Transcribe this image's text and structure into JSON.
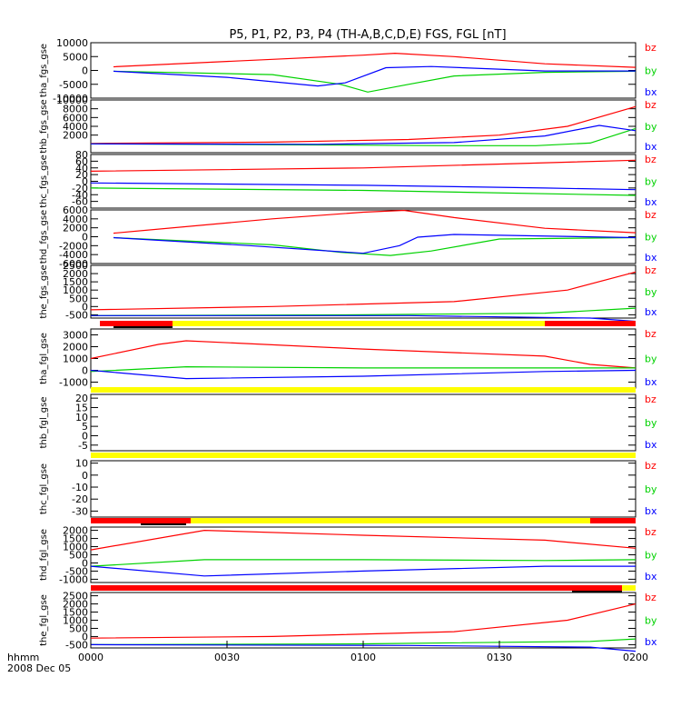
{
  "title": "P5, P1, P2, P3, P4 (TH-A,B,C,D,E) FGS, FGL [nT]",
  "footer": {
    "line1": "hhmm",
    "line2": "2008 Dec 05"
  },
  "colors": {
    "bx": "#0000ff",
    "by": "#00d200",
    "bz": "#ff0000",
    "bar_red": "#ff0000",
    "bar_yellow": "#ffff00",
    "bar_black": "#000000"
  },
  "chart_data": {
    "type": "line",
    "x_axis": {
      "ticks": [
        "0000",
        "0030",
        "0100",
        "0130",
        "0200"
      ],
      "range_minutes": [
        0,
        120
      ]
    },
    "legend": [
      "bz",
      "by",
      "bx"
    ],
    "panels": [
      {
        "ylabel": "tha_fgs_gse",
        "ylim": [
          -10000,
          10000
        ],
        "ticks": [
          -10000,
          -5000,
          0,
          5000,
          10000
        ],
        "series": {
          "bz": [
            [
              5,
              1300
            ],
            [
              40,
              4000
            ],
            [
              60,
              5500
            ],
            [
              67,
              6200
            ],
            [
              80,
              5000
            ],
            [
              100,
              2400
            ],
            [
              120,
              1100
            ]
          ],
          "by": [
            [
              5,
              -300
            ],
            [
              40,
              -1500
            ],
            [
              55,
              -5000
            ],
            [
              61,
              -7800
            ],
            [
              70,
              -5000
            ],
            [
              80,
              -2000
            ],
            [
              100,
              -700
            ],
            [
              120,
              -300
            ]
          ],
          "bx": [
            [
              5,
              -300
            ],
            [
              30,
              -2500
            ],
            [
              50,
              -5600
            ],
            [
              56,
              -4500
            ],
            [
              65,
              1000
            ],
            [
              75,
              1400
            ],
            [
              100,
              -200
            ],
            [
              120,
              -200
            ]
          ]
        }
      },
      {
        "ylabel": "thb_fgs_gse",
        "ylim": [
          -2000,
          10000
        ],
        "ticks": [
          2000,
          4000,
          6000,
          8000,
          10000
        ],
        "series": {
          "bz": [
            [
              0,
              100
            ],
            [
              40,
              400
            ],
            [
              70,
              1000
            ],
            [
              90,
              2000
            ],
            [
              105,
              4000
            ],
            [
              120,
              8500
            ]
          ],
          "by": [
            [
              0,
              0
            ],
            [
              40,
              -200
            ],
            [
              80,
              -400
            ],
            [
              98,
              -400
            ],
            [
              110,
              200
            ],
            [
              120,
              3500
            ]
          ],
          "bx": [
            [
              0,
              0
            ],
            [
              50,
              -100
            ],
            [
              80,
              300
            ],
            [
              100,
              1800
            ],
            [
              112,
              4200
            ],
            [
              120,
              3000
            ]
          ]
        }
      },
      {
        "ylabel": "thc_fgs_gse",
        "ylim": [
          -80,
          80
        ],
        "ticks": [
          -60,
          -40,
          -20,
          0,
          20,
          40,
          60,
          80
        ],
        "series": {
          "bz": [
            [
              0,
              30
            ],
            [
              60,
              40
            ],
            [
              120,
              63
            ]
          ],
          "by": [
            [
              0,
              -20
            ],
            [
              60,
              -27
            ],
            [
              120,
              -42
            ]
          ],
          "bx": [
            [
              0,
              -5
            ],
            [
              60,
              -12
            ],
            [
              100,
              -20
            ],
            [
              120,
              -25
            ]
          ]
        }
      },
      {
        "ylabel": "thd_fgs_gse",
        "ylim": [
          -6000,
          6000
        ],
        "ticks": [
          -6000,
          -4000,
          -2000,
          0,
          2000,
          4000,
          6000
        ],
        "series": {
          "bz": [
            [
              5,
              800
            ],
            [
              40,
              4000
            ],
            [
              60,
              5500
            ],
            [
              69,
              5900
            ],
            [
              80,
              4300
            ],
            [
              100,
              1900
            ],
            [
              120,
              900
            ]
          ],
          "by": [
            [
              5,
              -200
            ],
            [
              40,
              -1800
            ],
            [
              55,
              -3500
            ],
            [
              66,
              -4200
            ],
            [
              75,
              -3200
            ],
            [
              90,
              -500
            ],
            [
              120,
              -200
            ]
          ],
          "bx": [
            [
              5,
              -200
            ],
            [
              35,
              -2000
            ],
            [
              60,
              -3700
            ],
            [
              68,
              -2000
            ],
            [
              72,
              -100
            ],
            [
              80,
              500
            ],
            [
              120,
              -200
            ]
          ]
        }
      },
      {
        "ylabel": "the_fgs_gse",
        "ylim": [
          -700,
          2500
        ],
        "ticks": [
          -500,
          0,
          500,
          1000,
          1500,
          2000,
          2500
        ],
        "series": {
          "bz": [
            [
              0,
              -200
            ],
            [
              40,
              0
            ],
            [
              80,
              300
            ],
            [
              105,
              1000
            ],
            [
              120,
              2100
            ]
          ],
          "by": [
            [
              0,
              -550
            ],
            [
              60,
              -500
            ],
            [
              100,
              -400
            ],
            [
              120,
              -100
            ]
          ],
          "bx": [
            [
              0,
              -550
            ],
            [
              70,
              -550
            ],
            [
              110,
              -700
            ],
            [
              120,
              -900
            ]
          ]
        }
      },
      {
        "ylabel": "tha_fgl_gse",
        "ylim": [
          -1500,
          3500
        ],
        "ticks": [
          -1000,
          0,
          1000,
          2000,
          3000
        ],
        "series": {
          "bz": [
            [
              0,
              1000
            ],
            [
              15,
              2200
            ],
            [
              21,
              2500
            ],
            [
              60,
              1800
            ],
            [
              100,
              1200
            ],
            [
              110,
              500
            ],
            [
              120,
              200
            ]
          ],
          "by": [
            [
              0,
              -100
            ],
            [
              21,
              300
            ],
            [
              60,
              200
            ],
            [
              100,
              200
            ],
            [
              120,
              200
            ]
          ],
          "bx": [
            [
              0,
              0
            ],
            [
              21,
              -700
            ],
            [
              60,
              -500
            ],
            [
              100,
              -100
            ],
            [
              120,
              0
            ]
          ]
        }
      },
      {
        "ylabel": "thb_fgl_gse",
        "ylim": [
          -8,
          22
        ],
        "ticks": [
          -5,
          0,
          5,
          10,
          15,
          20
        ],
        "series": {}
      },
      {
        "ylabel": "thc_fgl_gse",
        "ylim": [
          -35,
          12
        ],
        "ticks": [
          -30,
          -20,
          -10,
          0,
          10
        ],
        "series": {}
      },
      {
        "ylabel": "thd_fgl_gse",
        "ylim": [
          -1200,
          2200
        ],
        "ticks": [
          -1000,
          -500,
          0,
          500,
          1000,
          1500,
          2000
        ],
        "series": {
          "bz": [
            [
              0,
              800
            ],
            [
              25,
              2000
            ],
            [
              60,
              1700
            ],
            [
              100,
              1400
            ],
            [
              120,
              900
            ]
          ],
          "by": [
            [
              0,
              -200
            ],
            [
              25,
              200
            ],
            [
              60,
              200
            ],
            [
              100,
              150
            ],
            [
              120,
              200
            ]
          ],
          "bx": [
            [
              0,
              -200
            ],
            [
              25,
              -800
            ],
            [
              60,
              -500
            ],
            [
              100,
              -200
            ],
            [
              120,
              -200
            ]
          ]
        }
      },
      {
        "ylabel": "the_fgl_gse",
        "ylim": [
          -700,
          2700
        ],
        "ticks": [
          -500,
          0,
          500,
          1000,
          1500,
          2000,
          2500
        ],
        "series": {
          "bz": [
            [
              0,
              -100
            ],
            [
              40,
              0
            ],
            [
              80,
              300
            ],
            [
              105,
              1000
            ],
            [
              120,
              2000
            ]
          ],
          "by": [
            [
              0,
              -500
            ],
            [
              60,
              -450
            ],
            [
              110,
              -300
            ],
            [
              120,
              -150
            ]
          ],
          "bx": [
            [
              0,
              -500
            ],
            [
              70,
              -550
            ],
            [
              110,
              -650
            ],
            [
              120,
              -900
            ]
          ]
        }
      }
    ],
    "mode_bars": [
      {
        "segments": [
          [
            "red",
            2,
            18
          ],
          [
            "yellow",
            18,
            100
          ],
          [
            "red",
            100,
            120
          ]
        ],
        "marks": [
          [
            5,
            18
          ]
        ]
      },
      {
        "segments": [
          [
            "yellow",
            0,
            120
          ]
        ],
        "marks": []
      },
      {
        "segments": [
          [
            "yellow",
            0,
            120
          ]
        ],
        "marks": []
      },
      {
        "segments": [
          [
            "red",
            0,
            22
          ],
          [
            "yellow",
            22,
            110
          ],
          [
            "red",
            110,
            120
          ]
        ],
        "marks": [
          [
            11,
            21
          ]
        ]
      },
      {
        "segments": [
          [
            "red",
            0,
            117
          ],
          [
            "yellow",
            117,
            120
          ]
        ],
        "marks": [
          [
            106,
            117
          ]
        ]
      }
    ]
  }
}
